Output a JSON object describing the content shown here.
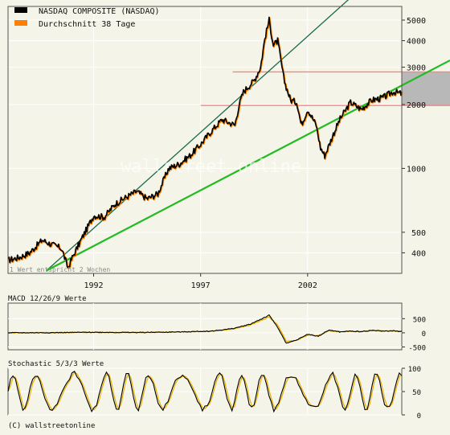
{
  "legend": {
    "items": [
      {
        "label": "NASDAQ COMPOSITE (NASDAQ)",
        "color": "#000000"
      },
      {
        "label": "Durchschnitt 38 Tage",
        "color": "#ff8000"
      }
    ]
  },
  "colors": {
    "background": "#f4f4e8",
    "grid": "#ffffff",
    "price": "#000000",
    "ma": "#ff8000",
    "macd": "#000000",
    "stoch_main": "#000000",
    "stoch_signal": "#e8b000",
    "trend_dark": "#1a6b4a",
    "trend_green": "#22bb22",
    "band_red": "#ff8080",
    "band_fill": "#b8b8b8"
  },
  "chart_data": [
    {
      "type": "line",
      "title": "NASDAQ COMPOSITE (NASDAQ)",
      "scale": "log",
      "ylim": [
        320,
        5800
      ],
      "xlim": [
        1988.0,
        2006.4
      ],
      "y_ticks": [
        400,
        500,
        1000,
        2000,
        3000,
        4000,
        5000
      ],
      "x_ticks": [
        1992,
        1997,
        2002
      ],
      "note": "1 Wert entspricht 2 Wochen",
      "series": [
        {
          "name": "NASDAQ COMPOSITE (NASDAQ)",
          "x": [
            1988.0,
            1988.5,
            1989.0,
            1989.6,
            1990.0,
            1990.5,
            1990.8,
            1991.0,
            1991.5,
            1992.0,
            1992.5,
            1993.0,
            1993.5,
            1994.0,
            1994.5,
            1995.0,
            1995.5,
            1996.0,
            1996.5,
            1997.0,
            1997.5,
            1998.0,
            1998.6,
            1998.8,
            1999.0,
            1999.5,
            1999.8,
            2000.0,
            2000.2,
            2000.4,
            2000.6,
            2000.9,
            2001.2,
            2001.5,
            2001.7,
            2002.0,
            2002.4,
            2002.6,
            2002.8,
            2003.2,
            2003.5,
            2004.0,
            2004.5,
            2005.0,
            2005.5,
            2006.0,
            2006.4
          ],
          "values": [
            370,
            380,
            400,
            460,
            440,
            420,
            340,
            380,
            480,
            600,
            590,
            680,
            730,
            780,
            720,
            760,
            1000,
            1050,
            1150,
            1300,
            1500,
            1700,
            1600,
            2000,
            2300,
            2600,
            3000,
            4100,
            5000,
            3800,
            4000,
            2600,
            2100,
            2050,
            1600,
            1900,
            1600,
            1250,
            1150,
            1450,
            1700,
            2050,
            1900,
            2100,
            2150,
            2300,
            2250
          ]
        },
        {
          "name": "Durchschnitt 38 Tage",
          "x": [
            1988.0,
            1989.0,
            1990.0,
            1991.0,
            1992.0,
            1993.0,
            1994.0,
            1995.0,
            1996.0,
            1997.0,
            1998.0,
            1999.0,
            1999.8,
            2000.2,
            2000.6,
            2001.0,
            2001.6,
            2002.0,
            2002.6,
            2003.0,
            2003.5,
            2004.0,
            2005.0,
            2006.0,
            2006.4
          ],
          "values": [
            372,
            398,
            435,
            375,
            590,
            670,
            770,
            740,
            1010,
            1290,
            1680,
            2250,
            2900,
            4300,
            3900,
            2700,
            1800,
            1850,
            1300,
            1250,
            1600,
            2000,
            2080,
            2280,
            2260
          ]
        }
      ],
      "lines": [
        {
          "name": "Trendlinie 1",
          "x": [
            1989.8,
            2006.4
          ],
          "values": [
            330,
            10500
          ]
        },
        {
          "name": "Trendlinie 2",
          "x": [
            1989.8,
            2006.4
          ],
          "values": [
            330,
            2460
          ]
        },
        {
          "name": "Widerstand",
          "x": [
            1998.5,
            2006.4
          ],
          "values": [
            2850,
            2850
          ]
        },
        {
          "name": "Unterstuetzung",
          "x": [
            1997.0,
            2006.4
          ],
          "values": [
            1980,
            1980
          ]
        }
      ]
    },
    {
      "type": "line",
      "title": "MACD 12/26/9 Werte",
      "ylim": [
        -600,
        1050
      ],
      "y_ticks": [
        500,
        0,
        -500
      ],
      "y_tick_labels": [
        "500",
        "0",
        "-500"
      ],
      "series": [
        {
          "name": "MACD",
          "x": [
            1988.0,
            1990.0,
            1992.0,
            1994.0,
            1996.0,
            1997.5,
            1998.5,
            1999.3,
            2000.2,
            2000.6,
            2001.0,
            2001.5,
            2002.0,
            2002.5,
            2003.0,
            2003.5,
            2004.0,
            2004.5,
            2005.0,
            2005.5,
            2006.0,
            2006.4
          ],
          "values": [
            0,
            5,
            20,
            10,
            30,
            60,
            150,
            300,
            620,
            200,
            -380,
            -250,
            -50,
            -120,
            100,
            30,
            60,
            40,
            90,
            60,
            70,
            40
          ]
        },
        {
          "name": "Signal",
          "x": [
            1988.0,
            1990.0,
            1992.0,
            1994.0,
            1996.0,
            1997.5,
            1998.5,
            1999.3,
            2000.2,
            2000.6,
            2001.0,
            2001.5,
            2002.0,
            2002.5,
            2003.0,
            2003.5,
            2004.0,
            2004.5,
            2005.0,
            2005.5,
            2006.0,
            2006.4
          ],
          "values": [
            0,
            4,
            18,
            12,
            28,
            55,
            130,
            270,
            560,
            280,
            -300,
            -270,
            -80,
            -100,
            70,
            40,
            55,
            45,
            80,
            65,
            65,
            45
          ]
        }
      ]
    },
    {
      "type": "line",
      "title": "Stochastic 5/3/3 Werte",
      "ylim": [
        0,
        100
      ],
      "y_ticks": [
        100,
        50,
        0
      ],
      "series": [
        {
          "name": "Stochastic %K",
          "x": [],
          "values": []
        },
        {
          "name": "Stochastic %D",
          "x": [],
          "values": []
        }
      ]
    }
  ],
  "footer": {
    "copyright": "(C) wallstreetonline"
  },
  "watermark": {
    "text": "wallstreet online"
  }
}
